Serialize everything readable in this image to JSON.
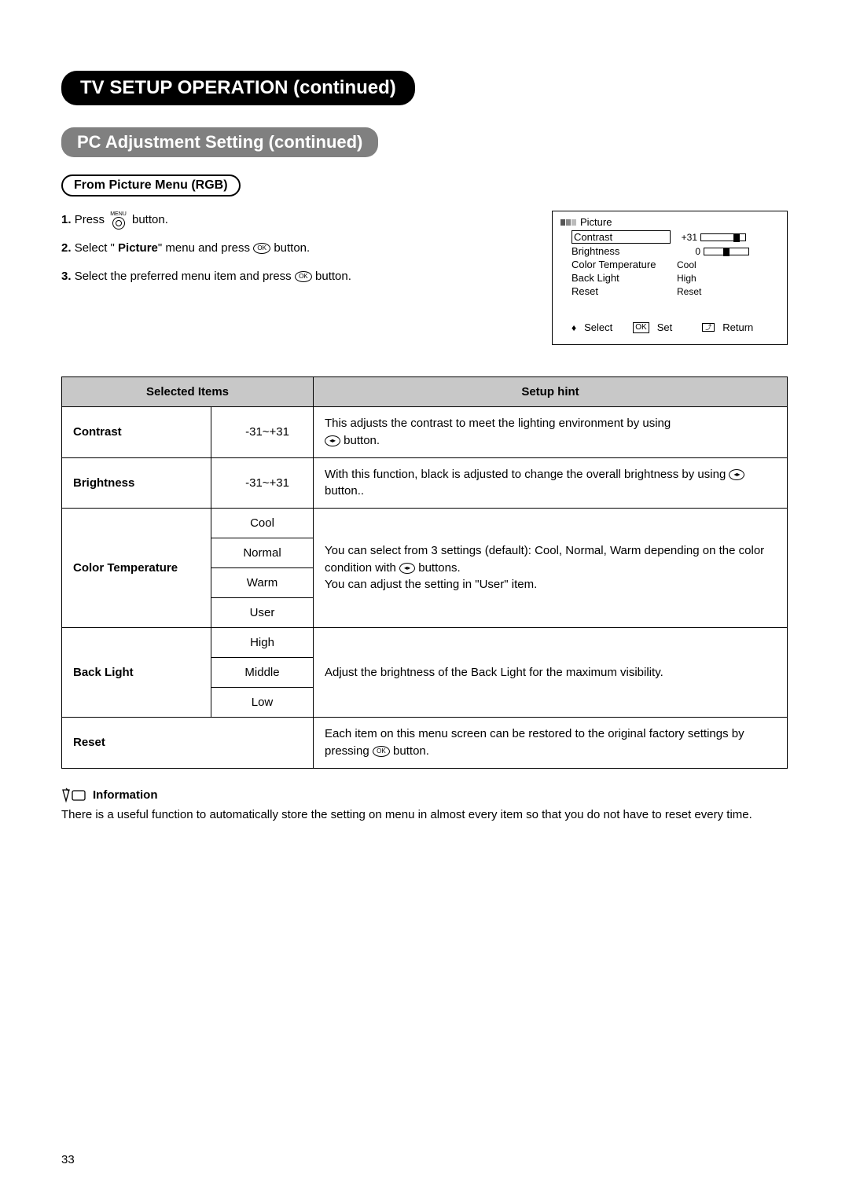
{
  "header": {
    "main_title": "TV SETUP OPERATION (continued)",
    "sub_title": "PC Adjustment Setting (continued)",
    "section_label": "From Picture Menu (RGB)"
  },
  "steps": [
    {
      "num": "1.",
      "pre": "Press ",
      "icon": "menu",
      "post": " button."
    },
    {
      "num": "2.",
      "pre": "Select \" ",
      "bold": "Picture",
      "mid": "\" menu and press ",
      "icon": "ok",
      "post": " button."
    },
    {
      "num": "3.",
      "pre": "Select the preferred menu item and press ",
      "icon": "ok",
      "post": " button."
    }
  ],
  "osd": {
    "title": "Picture",
    "rows": [
      {
        "label": "Contrast",
        "value": "+31",
        "slider": true,
        "knob_pct": 82,
        "selected": true
      },
      {
        "label": "Brightness",
        "value": "0",
        "slider": true,
        "knob_pct": 48,
        "selected": false
      },
      {
        "label": "Color Temperature",
        "value": "Cool",
        "slider": false,
        "selected": false
      },
      {
        "label": "Back Light",
        "value": "High",
        "slider": false,
        "selected": false
      },
      {
        "label": "Reset",
        "value": "Reset",
        "slider": false,
        "selected": false
      }
    ],
    "footer": {
      "select": "Select",
      "ok": "OK",
      "set": "Set",
      "return": "Return"
    }
  },
  "table": {
    "head": {
      "items": "Selected Items",
      "hint": "Setup hint"
    },
    "rows": {
      "contrast": {
        "name": "Contrast",
        "range": "-31~+31",
        "hint_pre": "This adjusts the contrast to meet the lighting environment by using ",
        "hint_post": " button."
      },
      "brightness": {
        "name": "Brightness",
        "range": "-31~+31",
        "hint_pre": "With this function, black is adjusted to change the overall brightness by using ",
        "hint_post": " button.."
      },
      "colortemp": {
        "name": "Color Temperature",
        "opts": [
          "Cool",
          "Normal",
          "Warm",
          "User"
        ],
        "hint_l1": "You can select from 3 settings (default): Cool, Normal, Warm depending on the color condition with ",
        "hint_l1b": " buttons.",
        "hint_l2": "You can adjust the setting in \"User\" item."
      },
      "backlight": {
        "name": "Back Light",
        "opts": [
          "High",
          "Middle",
          "Low"
        ],
        "hint": "Adjust the brightness of the Back Light for the maximum visibility."
      },
      "reset": {
        "name": "Reset",
        "hint_pre": "Each item on this menu screen can be restored to the original factory settings by pressing ",
        "hint_post": " button."
      }
    }
  },
  "info": {
    "title": "Information",
    "text": "There is a useful function to automatically store the setting on menu in almost every item so that you do not have to reset every time."
  },
  "page_num": "33",
  "icons": {
    "menu_label": "MENU",
    "ok_label": "OK",
    "lr_label": "◂▸",
    "return_label": "⤴"
  },
  "colors": {
    "title_black_bg": "#000000",
    "title_grey_bg": "#808080",
    "table_header_bg": "#c8c8c8",
    "text": "#000000"
  }
}
